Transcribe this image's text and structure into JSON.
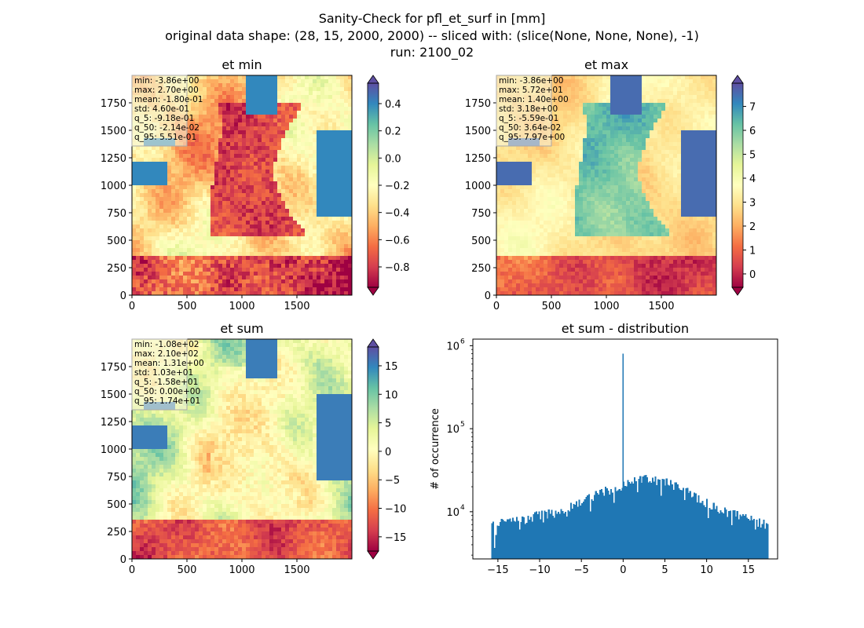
{
  "figure": {
    "title_line1": "Sanity-Check for pfl_et_surf in [mm]",
    "title_line2": "original data shape: (28, 15, 2000, 2000) -- sliced with: (slice(None, None, None), -1)",
    "title_line3": "run: 2100_02"
  },
  "chart_data": [
    {
      "type": "heatmap",
      "title": "et min",
      "extent": {
        "x": [
          0,
          2000
        ],
        "y": [
          0,
          2000
        ]
      },
      "xticks": [
        0,
        500,
        1000,
        1500
      ],
      "yticks": [
        0,
        250,
        500,
        750,
        1000,
        1250,
        1500,
        1750
      ],
      "colormap": "Spectral",
      "colorbar": {
        "range": [
          -0.95,
          0.55
        ],
        "ticks": [
          "0.4",
          "0.2",
          "0.0",
          "−0.2",
          "−0.4",
          "−0.6",
          "−0.8"
        ],
        "tick_values": [
          0.4,
          0.2,
          0.0,
          -0.2,
          -0.4,
          -0.6,
          -0.8
        ],
        "extend": "both"
      },
      "stats": [
        "min: -3.86e+00",
        "max: 2.70e+00",
        "mean: -1.80e-01",
        "std: 4.60e-01",
        "q_5: -9.18e-01",
        "q_50: -2.14e-02",
        "q_95: 5.51e-01"
      ]
    },
    {
      "type": "heatmap",
      "title": "et max",
      "extent": {
        "x": [
          0,
          2000
        ],
        "y": [
          0,
          2000
        ]
      },
      "xticks": [
        0,
        500,
        1000,
        1500
      ],
      "yticks": [
        0,
        250,
        500,
        750,
        1000,
        1250,
        1500,
        1750
      ],
      "colormap": "Spectral",
      "colorbar": {
        "range": [
          -0.56,
          7.97
        ],
        "ticks": [
          "7",
          "6",
          "5",
          "4",
          "3",
          "2",
          "1",
          "0"
        ],
        "tick_values": [
          7,
          6,
          5,
          4,
          3,
          2,
          1,
          0
        ],
        "extend": "both"
      },
      "stats": [
        "min: -3.86e+00",
        "max: 5.72e+01",
        "mean: 1.40e+00",
        "std: 3.18e+00",
        "q_5: -5.59e-01",
        "q_50: 3.64e-02",
        "q_95: 7.97e+00"
      ]
    },
    {
      "type": "heatmap",
      "title": "et sum",
      "extent": {
        "x": [
          0,
          2000
        ],
        "y": [
          0,
          2000
        ]
      },
      "xticks": [
        0,
        500,
        1000,
        1500
      ],
      "yticks": [
        0,
        250,
        500,
        750,
        1000,
        1250,
        1500,
        1750
      ],
      "colormap": "Spectral",
      "colorbar": {
        "range": [
          -17.5,
          18.3
        ],
        "ticks": [
          "15",
          "10",
          "5",
          "0",
          "−5",
          "−10",
          "−15"
        ],
        "tick_values": [
          15,
          10,
          5,
          0,
          -5,
          -10,
          -15
        ],
        "extend": "both"
      },
      "stats": [
        "min: -1.08e+02",
        "max: 2.10e+02",
        "mean: 1.31e+00",
        "std: 1.03e+01",
        "q_5: -1.58e+01",
        "q_50: 0.00e+00",
        "q_95: 1.74e+01"
      ]
    },
    {
      "type": "bar",
      "title": "et sum - distribution",
      "ylabel": "# of occurrence",
      "xlabel": "",
      "yscale": "log",
      "xlim": [
        -18,
        18.5
      ],
      "ylim": [
        2700,
        1200000
      ],
      "xticks": [
        -15,
        -10,
        -5,
        0,
        5,
        10,
        15
      ],
      "xtick_labels": [
        "−15",
        "−10",
        "−5",
        "0",
        "5",
        "10",
        "15"
      ],
      "yticks": [
        10000,
        100000,
        1000000
      ],
      "ytick_labels": [
        [
          "10",
          "4"
        ],
        [
          "10",
          "5"
        ],
        [
          "10",
          "6"
        ]
      ],
      "bin_range": [
        -15.8,
        17.4
      ],
      "bin_count": 200,
      "color": "#1f77b4",
      "profile_x": [
        -15.8,
        -15,
        -13,
        -10,
        -8,
        -6,
        -3,
        -1,
        -0.2,
        0.2,
        1,
        2.5,
        4,
        6,
        8,
        10,
        12,
        15,
        17.4
      ],
      "profile_y": [
        7500,
        7300,
        7800,
        9000,
        9800,
        11500,
        16500,
        19500,
        20500,
        22000,
        23500,
        25500,
        23500,
        21000,
        17000,
        12500,
        10000,
        8200,
        7000
      ],
      "spike": {
        "x": 0,
        "y": 800000
      }
    }
  ],
  "colors": {
    "bars": "#1f77b4",
    "text": "#000000"
  }
}
